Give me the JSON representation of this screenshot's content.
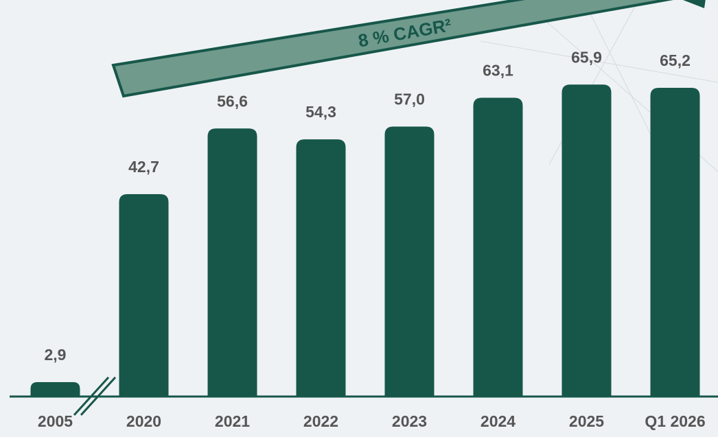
{
  "chart_data": {
    "type": "bar",
    "annotation": "8 % CAGR²",
    "categories": [
      "2005",
      "2020",
      "2021",
      "2022",
      "2023",
      "2024",
      "2025",
      "Q1 2026"
    ],
    "values": [
      2.9,
      42.7,
      56.6,
      54.3,
      57.0,
      63.1,
      65.9,
      65.2
    ],
    "value_labels": [
      "2,9",
      "42,7",
      "56,6",
      "54,3",
      "57,0",
      "63,1",
      "65,9",
      "65,2"
    ],
    "color": "#17574a",
    "ylim": [
      0,
      70
    ]
  }
}
